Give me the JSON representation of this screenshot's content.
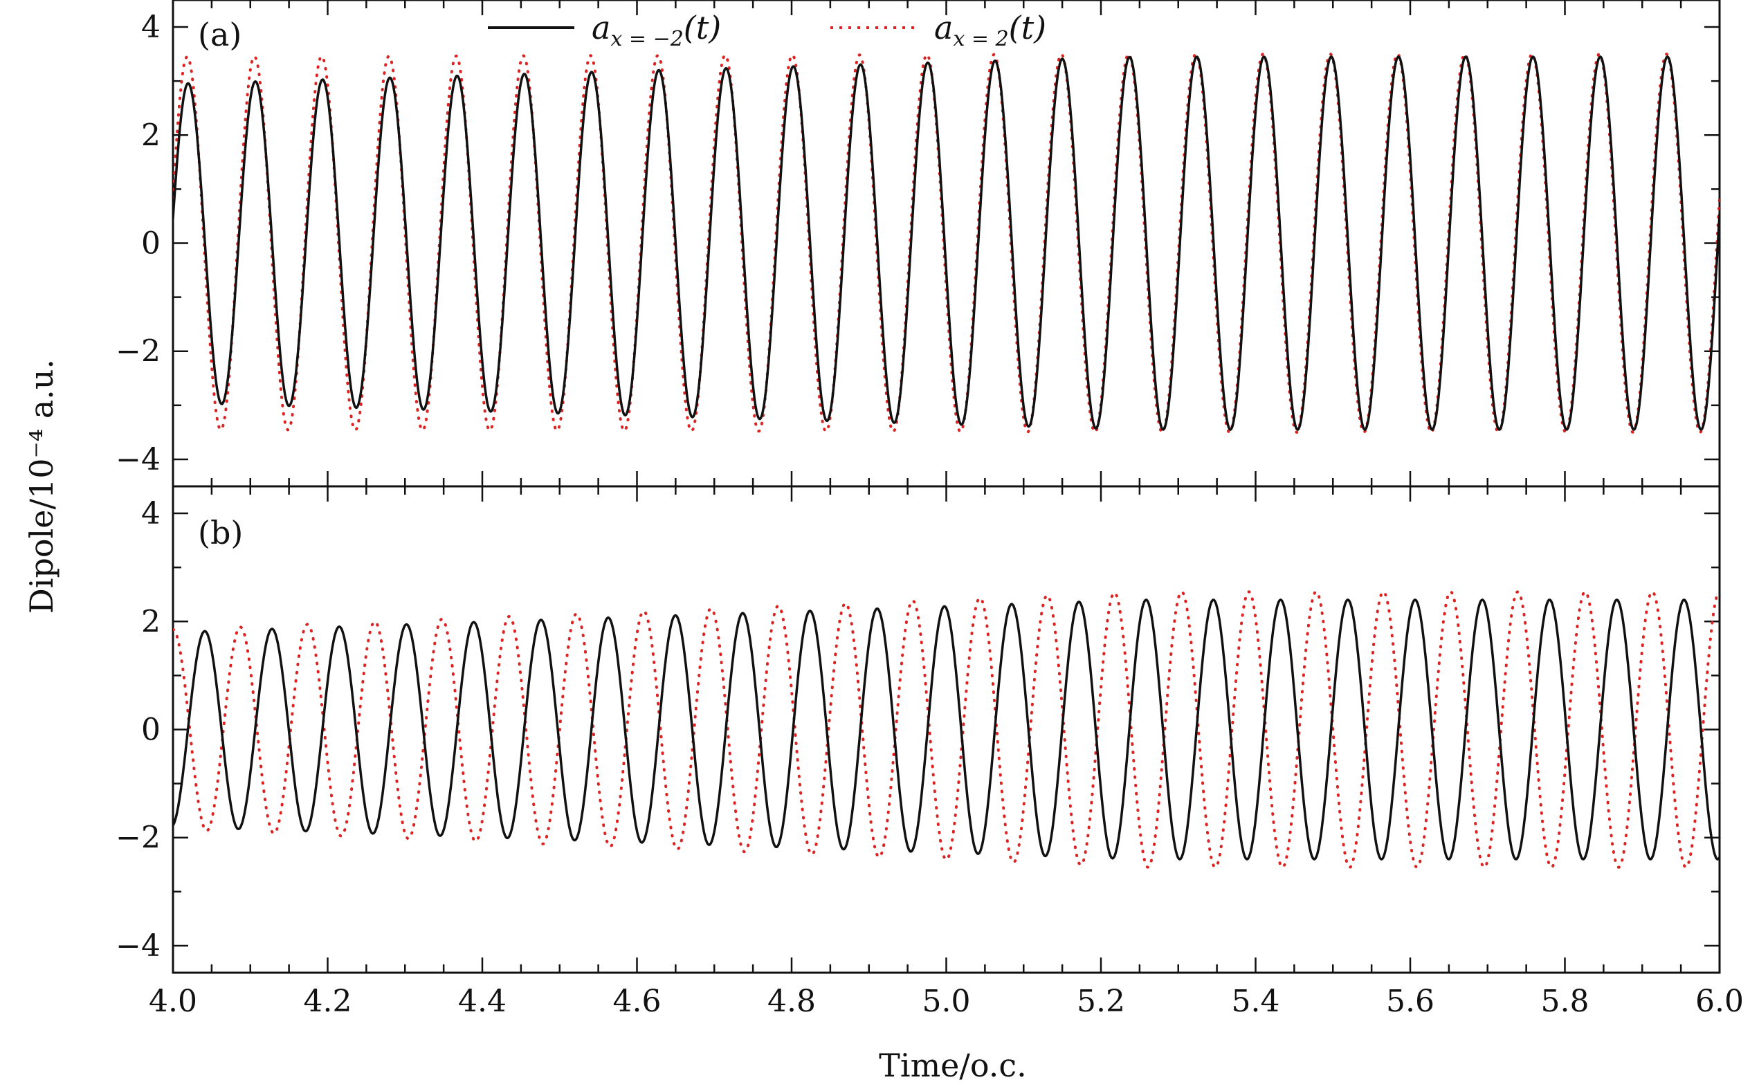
{
  "chart_data": {
    "type": "line",
    "xlabel": "Time/o.c.",
    "ylabel": "Dipole/10⁻⁴ a.u.",
    "xlim": [
      4.0,
      6.0
    ],
    "ylim": [
      -4.5,
      4.5
    ],
    "x_ticks": [
      4.0,
      4.2,
      4.4,
      4.6,
      4.8,
      5.0,
      5.2,
      5.4,
      5.6,
      5.8,
      6.0
    ],
    "x_tick_labels": [
      "4.0",
      "4.2",
      "4.4",
      "4.6",
      "4.8",
      "5.0",
      "5.2",
      "5.4",
      "5.6",
      "5.8",
      "6.0"
    ],
    "y_ticks": [
      4,
      2,
      0,
      -2,
      -4
    ],
    "y_tick_labels": [
      "4",
      "2",
      "0",
      "−2",
      "−4"
    ],
    "grid": false,
    "legend_position": "top-center",
    "colors": {
      "series_a": "#111111",
      "series_b": "#dd2222"
    },
    "panels": [
      {
        "label": "(a)",
        "series": [
          {
            "name": "a_{x=-2}(t)",
            "legend_base": "a",
            "legend_sub": "x = −2",
            "legend_arg": "(t)",
            "style": "solid",
            "color": "#111111",
            "cycles_per_unit": 11.5,
            "phase_deg": 9,
            "amplitude_start": 2.95,
            "amplitude_end": 3.45
          },
          {
            "name": "a_{x=2}(t)",
            "legend_base": "a",
            "legend_sub": "x = 2",
            "legend_arg": "(t)",
            "style": "dotted",
            "color": "#dd2222",
            "cycles_per_unit": 11.5,
            "phase_deg": 14,
            "amplitude_start": 3.45,
            "amplitude_end": 3.5
          }
        ]
      },
      {
        "label": "(b)",
        "series": [
          {
            "name": "a_{x=-2}(t)",
            "style": "solid",
            "color": "#111111",
            "cycles_per_unit": 11.5,
            "phase_deg": -80,
            "amplitude_start": 1.8,
            "amplitude_end": 2.4
          },
          {
            "name": "a_{x=2}(t)",
            "style": "dotted",
            "color": "#dd2222",
            "cycles_per_unit": 11.5,
            "phase_deg": 90,
            "amplitude_start": 1.85,
            "amplitude_end": 2.55
          }
        ]
      }
    ]
  }
}
